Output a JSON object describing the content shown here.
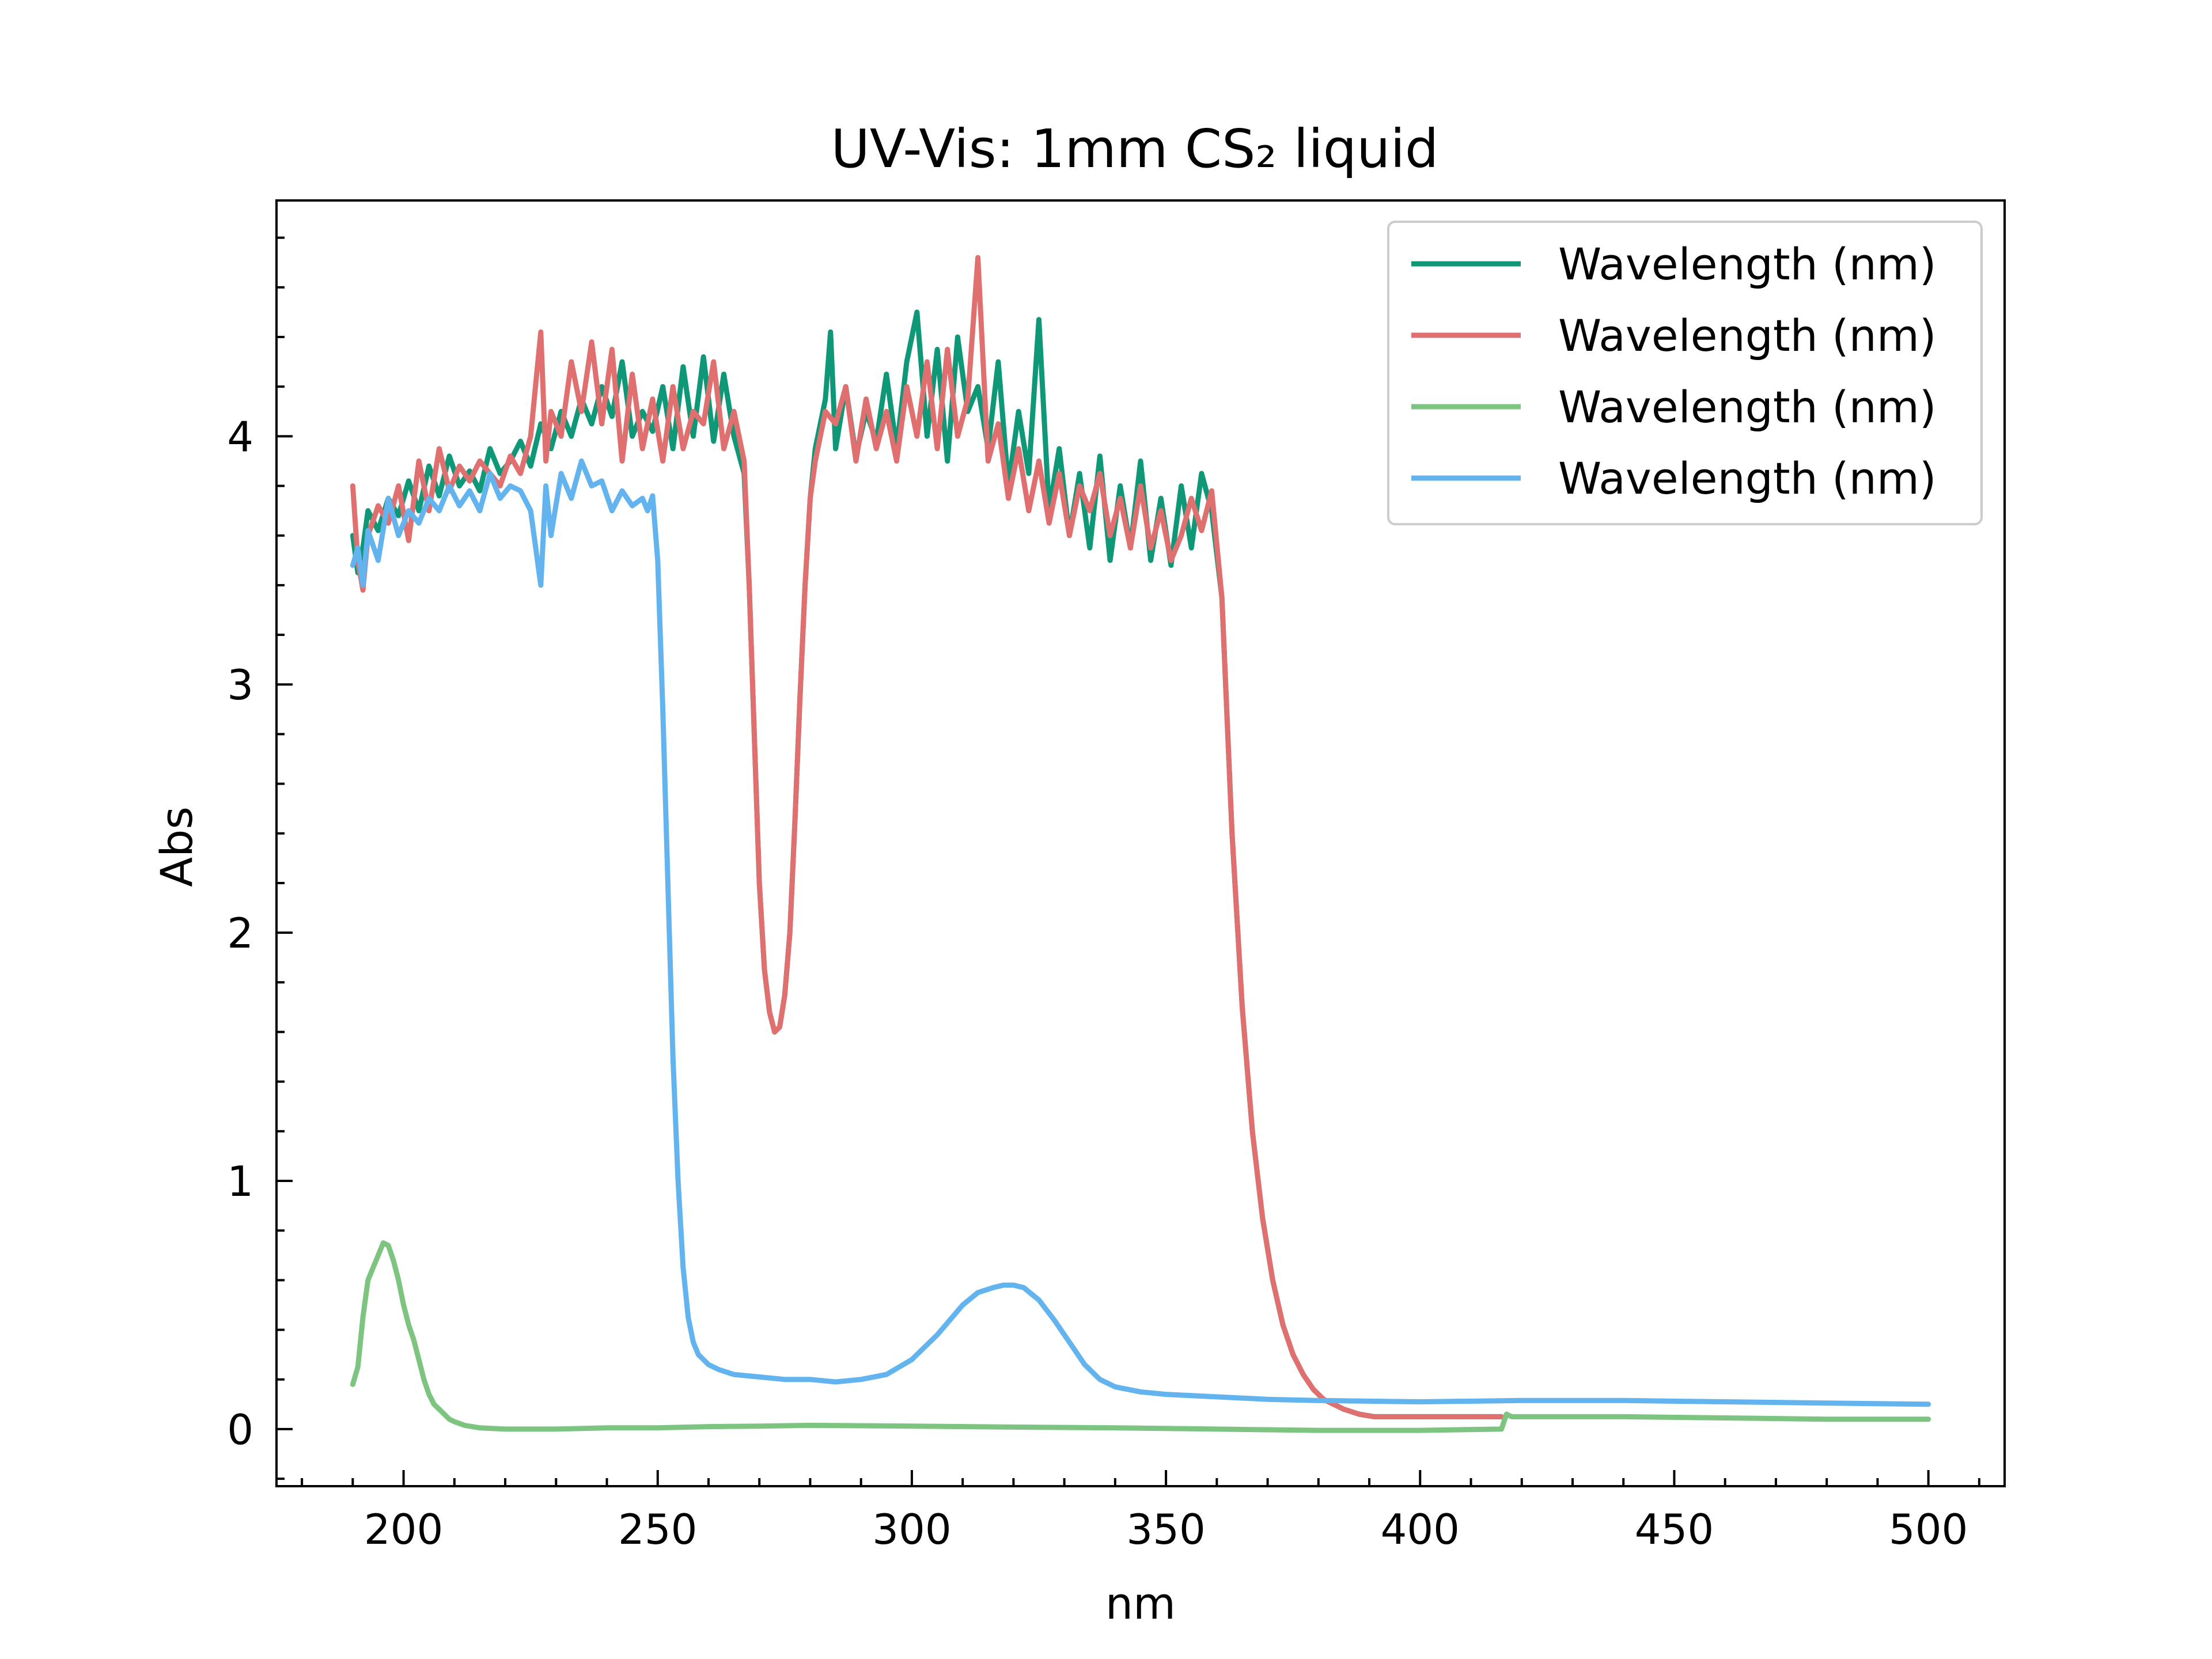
{
  "chart_data": {
    "type": "line",
    "title": "UV-Vis: 1mm CS₂ liquid",
    "xlabel": "nm",
    "ylabel": "Abs",
    "xlim": [
      175,
      515
    ],
    "ylim": [
      -0.23,
      4.95
    ],
    "x_ticks": [
      200,
      250,
      300,
      350,
      400,
      450,
      500
    ],
    "x_tick_labels": [
      "200",
      "250",
      "300",
      "350",
      "400",
      "450",
      "500"
    ],
    "y_ticks": [
      0,
      1,
      2,
      3,
      4
    ],
    "y_tick_labels": [
      "0",
      "1",
      "2",
      "3",
      "4"
    ],
    "grid": false,
    "legend_position": "top-right",
    "series": [
      {
        "name": "Wavelength (nm)",
        "color": "#0f9878",
        "x": [
          190,
          191,
          192,
          193,
          195,
          197,
          199,
          201,
          203,
          205,
          207,
          209,
          211,
          213,
          215,
          217,
          219,
          221,
          223,
          225,
          227,
          229,
          231,
          233,
          235,
          237,
          239,
          241,
          243,
          245,
          247,
          249,
          251,
          253,
          255,
          257,
          259,
          261,
          263,
          265,
          267,
          268,
          269,
          270,
          271,
          272,
          273,
          274,
          275,
          276,
          277,
          278,
          279,
          280,
          281,
          282,
          283,
          284,
          285,
          287,
          289,
          291,
          293,
          295,
          297,
          299,
          301,
          303,
          305,
          307,
          309,
          311,
          313,
          315,
          317,
          319,
          321,
          323,
          325,
          327,
          329,
          331,
          333,
          335,
          337,
          339,
          341,
          343,
          345,
          347,
          349,
          351,
          353,
          355,
          357,
          359,
          361,
          363,
          365,
          367,
          369,
          371,
          373,
          375,
          377,
          379,
          381,
          383,
          385,
          388,
          391,
          395,
          400,
          405,
          410,
          416
        ],
        "y": [
          3.6,
          3.45,
          3.55,
          3.7,
          3.62,
          3.75,
          3.68,
          3.82,
          3.7,
          3.88,
          3.76,
          3.92,
          3.8,
          3.86,
          3.78,
          3.95,
          3.85,
          3.9,
          3.98,
          3.88,
          4.05,
          3.95,
          4.1,
          4.0,
          4.15,
          4.05,
          4.2,
          4.08,
          4.3,
          4.0,
          4.1,
          4.02,
          4.2,
          3.95,
          4.28,
          4.0,
          4.32,
          3.98,
          4.25,
          4.0,
          3.85,
          3.4,
          2.8,
          2.2,
          1.85,
          1.68,
          1.6,
          1.62,
          1.75,
          2.0,
          2.45,
          2.95,
          3.4,
          3.75,
          3.95,
          4.05,
          4.15,
          4.42,
          3.95,
          4.2,
          3.92,
          4.1,
          3.98,
          4.25,
          3.95,
          4.3,
          4.5,
          4.0,
          4.35,
          3.9,
          4.4,
          4.1,
          4.2,
          3.95,
          4.3,
          3.8,
          4.1,
          3.85,
          4.47,
          3.7,
          3.95,
          3.6,
          3.85,
          3.55,
          3.92,
          3.5,
          3.8,
          3.55,
          3.9,
          3.5,
          3.75,
          3.48,
          3.8,
          3.55,
          3.85,
          3.7,
          3.35,
          2.4,
          1.7,
          1.2,
          0.85,
          0.6,
          0.42,
          0.3,
          0.22,
          0.16,
          0.12,
          0.1,
          0.08,
          0.06,
          0.05,
          0.05,
          0.05,
          0.05,
          0.05,
          0.05
        ]
      },
      {
        "name": "Wavelength (nm)",
        "color": "#e07070",
        "x": [
          190,
          191,
          192,
          193,
          195,
          197,
          199,
          201,
          203,
          205,
          207,
          209,
          211,
          213,
          215,
          217,
          219,
          221,
          223,
          225,
          227,
          228,
          229,
          231,
          233,
          235,
          237,
          239,
          241,
          243,
          245,
          247,
          249,
          251,
          253,
          255,
          257,
          259,
          261,
          263,
          265,
          267,
          268,
          269,
          270,
          271,
          272,
          273,
          274,
          275,
          276,
          277,
          278,
          279,
          280,
          281,
          282,
          283,
          285,
          287,
          289,
          291,
          293,
          295,
          297,
          299,
          301,
          303,
          305,
          307,
          309,
          311,
          313,
          315,
          317,
          319,
          321,
          323,
          325,
          327,
          329,
          331,
          333,
          335,
          337,
          339,
          341,
          343,
          345,
          347,
          349,
          351,
          353,
          355,
          357,
          359,
          361,
          363,
          365,
          367,
          369,
          371,
          373,
          375,
          377,
          379,
          381,
          383,
          385,
          388,
          391,
          395,
          400,
          405,
          410,
          416
        ],
        "y": [
          3.8,
          3.5,
          3.38,
          3.6,
          3.72,
          3.65,
          3.8,
          3.58,
          3.9,
          3.7,
          3.95,
          3.78,
          3.88,
          3.82,
          3.9,
          3.85,
          3.8,
          3.92,
          3.85,
          4.0,
          4.42,
          3.9,
          4.1,
          4.0,
          4.3,
          4.1,
          4.38,
          4.05,
          4.35,
          3.9,
          4.25,
          3.95,
          4.15,
          3.9,
          4.2,
          3.95,
          4.1,
          4.05,
          4.3,
          3.95,
          4.1,
          3.9,
          3.4,
          2.8,
          2.2,
          1.85,
          1.68,
          1.6,
          1.62,
          1.75,
          2.0,
          2.45,
          2.95,
          3.4,
          3.75,
          3.9,
          4.0,
          4.1,
          4.05,
          4.2,
          3.9,
          4.15,
          3.95,
          4.1,
          3.9,
          4.2,
          4.0,
          4.3,
          3.95,
          4.35,
          4.0,
          4.15,
          4.72,
          3.9,
          4.05,
          3.75,
          3.95,
          3.7,
          3.9,
          3.65,
          3.85,
          3.6,
          3.8,
          3.7,
          3.85,
          3.6,
          3.75,
          3.55,
          3.8,
          3.55,
          3.7,
          3.5,
          3.6,
          3.75,
          3.62,
          3.78,
          3.35,
          2.4,
          1.7,
          1.2,
          0.85,
          0.6,
          0.42,
          0.3,
          0.22,
          0.16,
          0.12,
          0.1,
          0.08,
          0.06,
          0.05,
          0.05,
          0.05,
          0.05,
          0.05,
          0.05
        ]
      },
      {
        "name": "Wavelength (nm)",
        "color": "#7cc47f",
        "x": [
          190,
          191,
          192,
          193,
          194,
          195,
          196,
          197,
          198,
          199,
          200,
          201,
          202,
          203,
          204,
          205,
          206,
          207,
          208,
          209,
          210,
          212,
          215,
          220,
          230,
          240,
          250,
          260,
          270,
          280,
          300,
          320,
          340,
          360,
          380,
          400,
          416,
          417,
          418,
          420,
          440,
          460,
          480,
          500
        ],
        "y": [
          0.18,
          0.25,
          0.45,
          0.6,
          0.65,
          0.7,
          0.75,
          0.74,
          0.68,
          0.6,
          0.5,
          0.42,
          0.36,
          0.28,
          0.2,
          0.14,
          0.1,
          0.08,
          0.06,
          0.04,
          0.03,
          0.015,
          0.005,
          0.0,
          0.0,
          0.005,
          0.005,
          0.01,
          0.012,
          0.015,
          0.012,
          0.008,
          0.005,
          0.0,
          -0.005,
          -0.005,
          0.0,
          0.06,
          0.05,
          0.05,
          0.05,
          0.045,
          0.04,
          0.04
        ]
      },
      {
        "name": "Wavelength (nm)",
        "color": "#62b3ee",
        "x": [
          190,
          191,
          192,
          193,
          195,
          197,
          199,
          201,
          203,
          205,
          207,
          209,
          211,
          213,
          215,
          217,
          219,
          221,
          223,
          225,
          227,
          228,
          229,
          231,
          233,
          235,
          237,
          239,
          241,
          243,
          245,
          247,
          248,
          249,
          250,
          251,
          252,
          253,
          254,
          255,
          256,
          257,
          258,
          260,
          262,
          265,
          270,
          275,
          280,
          285,
          290,
          295,
          300,
          305,
          310,
          313,
          316,
          318,
          320,
          322,
          325,
          328,
          331,
          334,
          337,
          340,
          345,
          350,
          360,
          370,
          380,
          400,
          420,
          440,
          460,
          480,
          500
        ],
        "y": [
          3.48,
          3.55,
          3.4,
          3.62,
          3.5,
          3.75,
          3.6,
          3.7,
          3.65,
          3.75,
          3.7,
          3.8,
          3.72,
          3.78,
          3.7,
          3.85,
          3.75,
          3.8,
          3.78,
          3.7,
          3.4,
          3.8,
          3.6,
          3.85,
          3.75,
          3.9,
          3.8,
          3.82,
          3.7,
          3.78,
          3.72,
          3.75,
          3.7,
          3.76,
          3.5,
          2.9,
          2.2,
          1.5,
          1.0,
          0.65,
          0.45,
          0.35,
          0.3,
          0.26,
          0.24,
          0.22,
          0.21,
          0.2,
          0.2,
          0.19,
          0.2,
          0.22,
          0.28,
          0.38,
          0.5,
          0.55,
          0.57,
          0.58,
          0.58,
          0.57,
          0.52,
          0.44,
          0.35,
          0.26,
          0.2,
          0.17,
          0.15,
          0.14,
          0.13,
          0.12,
          0.115,
          0.11,
          0.115,
          0.115,
          0.11,
          0.105,
          0.1
        ]
      }
    ]
  }
}
